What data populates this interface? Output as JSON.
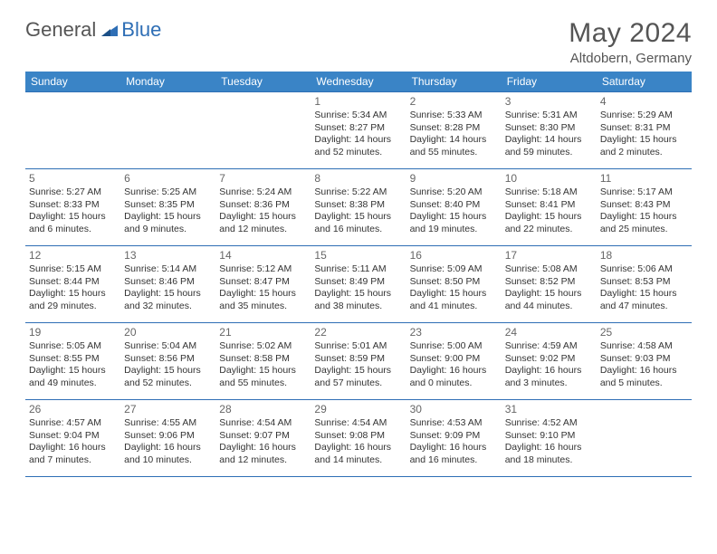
{
  "brand": {
    "general": "General",
    "blue": "Blue"
  },
  "title": "May 2024",
  "location": "Altdobern, Germany",
  "colors": {
    "header_bg": "#3a84c6",
    "border": "#2e6eb5",
    "text_dark": "#333333",
    "text_muted": "#666666",
    "brand_blue": "#2e6eb5"
  },
  "weekdays": [
    "Sunday",
    "Monday",
    "Tuesday",
    "Wednesday",
    "Thursday",
    "Friday",
    "Saturday"
  ],
  "cells": [
    [
      {
        "n": "",
        "sr": "",
        "ss": "",
        "dl": ""
      },
      {
        "n": "",
        "sr": "",
        "ss": "",
        "dl": ""
      },
      {
        "n": "",
        "sr": "",
        "ss": "",
        "dl": ""
      },
      {
        "n": "1",
        "sr": "Sunrise: 5:34 AM",
        "ss": "Sunset: 8:27 PM",
        "dl": "Daylight: 14 hours and 52 minutes."
      },
      {
        "n": "2",
        "sr": "Sunrise: 5:33 AM",
        "ss": "Sunset: 8:28 PM",
        "dl": "Daylight: 14 hours and 55 minutes."
      },
      {
        "n": "3",
        "sr": "Sunrise: 5:31 AM",
        "ss": "Sunset: 8:30 PM",
        "dl": "Daylight: 14 hours and 59 minutes."
      },
      {
        "n": "4",
        "sr": "Sunrise: 5:29 AM",
        "ss": "Sunset: 8:31 PM",
        "dl": "Daylight: 15 hours and 2 minutes."
      }
    ],
    [
      {
        "n": "5",
        "sr": "Sunrise: 5:27 AM",
        "ss": "Sunset: 8:33 PM",
        "dl": "Daylight: 15 hours and 6 minutes."
      },
      {
        "n": "6",
        "sr": "Sunrise: 5:25 AM",
        "ss": "Sunset: 8:35 PM",
        "dl": "Daylight: 15 hours and 9 minutes."
      },
      {
        "n": "7",
        "sr": "Sunrise: 5:24 AM",
        "ss": "Sunset: 8:36 PM",
        "dl": "Daylight: 15 hours and 12 minutes."
      },
      {
        "n": "8",
        "sr": "Sunrise: 5:22 AM",
        "ss": "Sunset: 8:38 PM",
        "dl": "Daylight: 15 hours and 16 minutes."
      },
      {
        "n": "9",
        "sr": "Sunrise: 5:20 AM",
        "ss": "Sunset: 8:40 PM",
        "dl": "Daylight: 15 hours and 19 minutes."
      },
      {
        "n": "10",
        "sr": "Sunrise: 5:18 AM",
        "ss": "Sunset: 8:41 PM",
        "dl": "Daylight: 15 hours and 22 minutes."
      },
      {
        "n": "11",
        "sr": "Sunrise: 5:17 AM",
        "ss": "Sunset: 8:43 PM",
        "dl": "Daylight: 15 hours and 25 minutes."
      }
    ],
    [
      {
        "n": "12",
        "sr": "Sunrise: 5:15 AM",
        "ss": "Sunset: 8:44 PM",
        "dl": "Daylight: 15 hours and 29 minutes."
      },
      {
        "n": "13",
        "sr": "Sunrise: 5:14 AM",
        "ss": "Sunset: 8:46 PM",
        "dl": "Daylight: 15 hours and 32 minutes."
      },
      {
        "n": "14",
        "sr": "Sunrise: 5:12 AM",
        "ss": "Sunset: 8:47 PM",
        "dl": "Daylight: 15 hours and 35 minutes."
      },
      {
        "n": "15",
        "sr": "Sunrise: 5:11 AM",
        "ss": "Sunset: 8:49 PM",
        "dl": "Daylight: 15 hours and 38 minutes."
      },
      {
        "n": "16",
        "sr": "Sunrise: 5:09 AM",
        "ss": "Sunset: 8:50 PM",
        "dl": "Daylight: 15 hours and 41 minutes."
      },
      {
        "n": "17",
        "sr": "Sunrise: 5:08 AM",
        "ss": "Sunset: 8:52 PM",
        "dl": "Daylight: 15 hours and 44 minutes."
      },
      {
        "n": "18",
        "sr": "Sunrise: 5:06 AM",
        "ss": "Sunset: 8:53 PM",
        "dl": "Daylight: 15 hours and 47 minutes."
      }
    ],
    [
      {
        "n": "19",
        "sr": "Sunrise: 5:05 AM",
        "ss": "Sunset: 8:55 PM",
        "dl": "Daylight: 15 hours and 49 minutes."
      },
      {
        "n": "20",
        "sr": "Sunrise: 5:04 AM",
        "ss": "Sunset: 8:56 PM",
        "dl": "Daylight: 15 hours and 52 minutes."
      },
      {
        "n": "21",
        "sr": "Sunrise: 5:02 AM",
        "ss": "Sunset: 8:58 PM",
        "dl": "Daylight: 15 hours and 55 minutes."
      },
      {
        "n": "22",
        "sr": "Sunrise: 5:01 AM",
        "ss": "Sunset: 8:59 PM",
        "dl": "Daylight: 15 hours and 57 minutes."
      },
      {
        "n": "23",
        "sr": "Sunrise: 5:00 AM",
        "ss": "Sunset: 9:00 PM",
        "dl": "Daylight: 16 hours and 0 minutes."
      },
      {
        "n": "24",
        "sr": "Sunrise: 4:59 AM",
        "ss": "Sunset: 9:02 PM",
        "dl": "Daylight: 16 hours and 3 minutes."
      },
      {
        "n": "25",
        "sr": "Sunrise: 4:58 AM",
        "ss": "Sunset: 9:03 PM",
        "dl": "Daylight: 16 hours and 5 minutes."
      }
    ],
    [
      {
        "n": "26",
        "sr": "Sunrise: 4:57 AM",
        "ss": "Sunset: 9:04 PM",
        "dl": "Daylight: 16 hours and 7 minutes."
      },
      {
        "n": "27",
        "sr": "Sunrise: 4:55 AM",
        "ss": "Sunset: 9:06 PM",
        "dl": "Daylight: 16 hours and 10 minutes."
      },
      {
        "n": "28",
        "sr": "Sunrise: 4:54 AM",
        "ss": "Sunset: 9:07 PM",
        "dl": "Daylight: 16 hours and 12 minutes."
      },
      {
        "n": "29",
        "sr": "Sunrise: 4:54 AM",
        "ss": "Sunset: 9:08 PM",
        "dl": "Daylight: 16 hours and 14 minutes."
      },
      {
        "n": "30",
        "sr": "Sunrise: 4:53 AM",
        "ss": "Sunset: 9:09 PM",
        "dl": "Daylight: 16 hours and 16 minutes."
      },
      {
        "n": "31",
        "sr": "Sunrise: 4:52 AM",
        "ss": "Sunset: 9:10 PM",
        "dl": "Daylight: 16 hours and 18 minutes."
      },
      {
        "n": "",
        "sr": "",
        "ss": "",
        "dl": ""
      }
    ]
  ]
}
